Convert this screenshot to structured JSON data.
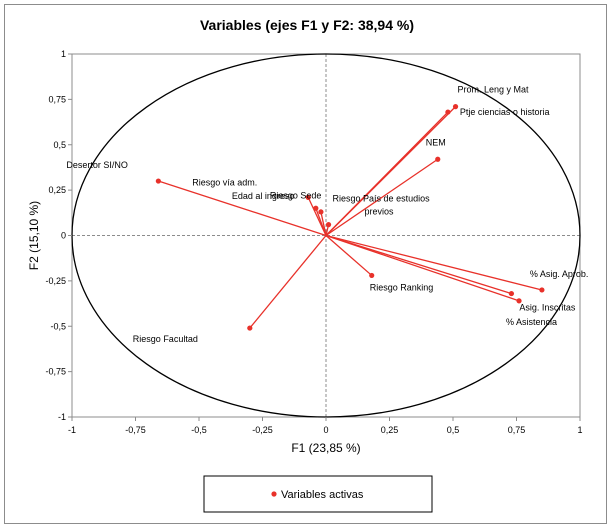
{
  "chart_data": {
    "type": "scatter",
    "title": "Variables (ejes F1 y F2: 38,94 %)",
    "xlabel": "F1 (23,85 %)",
    "ylabel": "F2 (15,10 %)",
    "xlim": [
      -1,
      1
    ],
    "ylim": [
      -1,
      1
    ],
    "x_ticks": [
      "-1",
      "-0,75",
      "-0,5",
      "-0,25",
      "0",
      "0,25",
      "0,5",
      "0,75",
      "1"
    ],
    "y_ticks": [
      "1",
      "0,75",
      "0,5",
      "0,25",
      "0",
      "-0,25",
      "-0,5",
      "-0,75",
      "-1"
    ],
    "grid": false,
    "unit_circle": true,
    "series_color": "#e8312a",
    "legend": {
      "entries": [
        "Variables activas"
      ],
      "placement": "bottom"
    },
    "points": [
      {
        "label": "Prom. Leng y Mat",
        "x": 0.51,
        "y": 0.71
      },
      {
        "label": "Ptje ciencias o historia",
        "x": 0.48,
        "y": 0.68
      },
      {
        "label": "NEM",
        "x": 0.44,
        "y": 0.42
      },
      {
        "label": "Desertor SI/NO",
        "x": -0.66,
        "y": 0.3
      },
      {
        "label": "Riesgo vía adm.",
        "x": -0.07,
        "y": 0.21
      },
      {
        "label": "Riesgo Sede",
        "x": -0.04,
        "y": 0.15
      },
      {
        "label": "Edad al ingreso",
        "x": -0.02,
        "y": 0.13
      },
      {
        "label": "Riesgo País de estudios previos",
        "x": 0.01,
        "y": 0.06
      },
      {
        "label": "Riesgo Ranking",
        "x": 0.18,
        "y": -0.22
      },
      {
        "label": "Riesgo Facultad",
        "x": -0.3,
        "y": -0.51
      },
      {
        "label": "% Asig. Aprob.",
        "x": 0.85,
        "y": -0.3
      },
      {
        "label": "Asig. Inscritas",
        "x": 0.73,
        "y": -0.32
      },
      {
        "label": "% Asistencia",
        "x": 0.76,
        "y": -0.36
      }
    ]
  }
}
